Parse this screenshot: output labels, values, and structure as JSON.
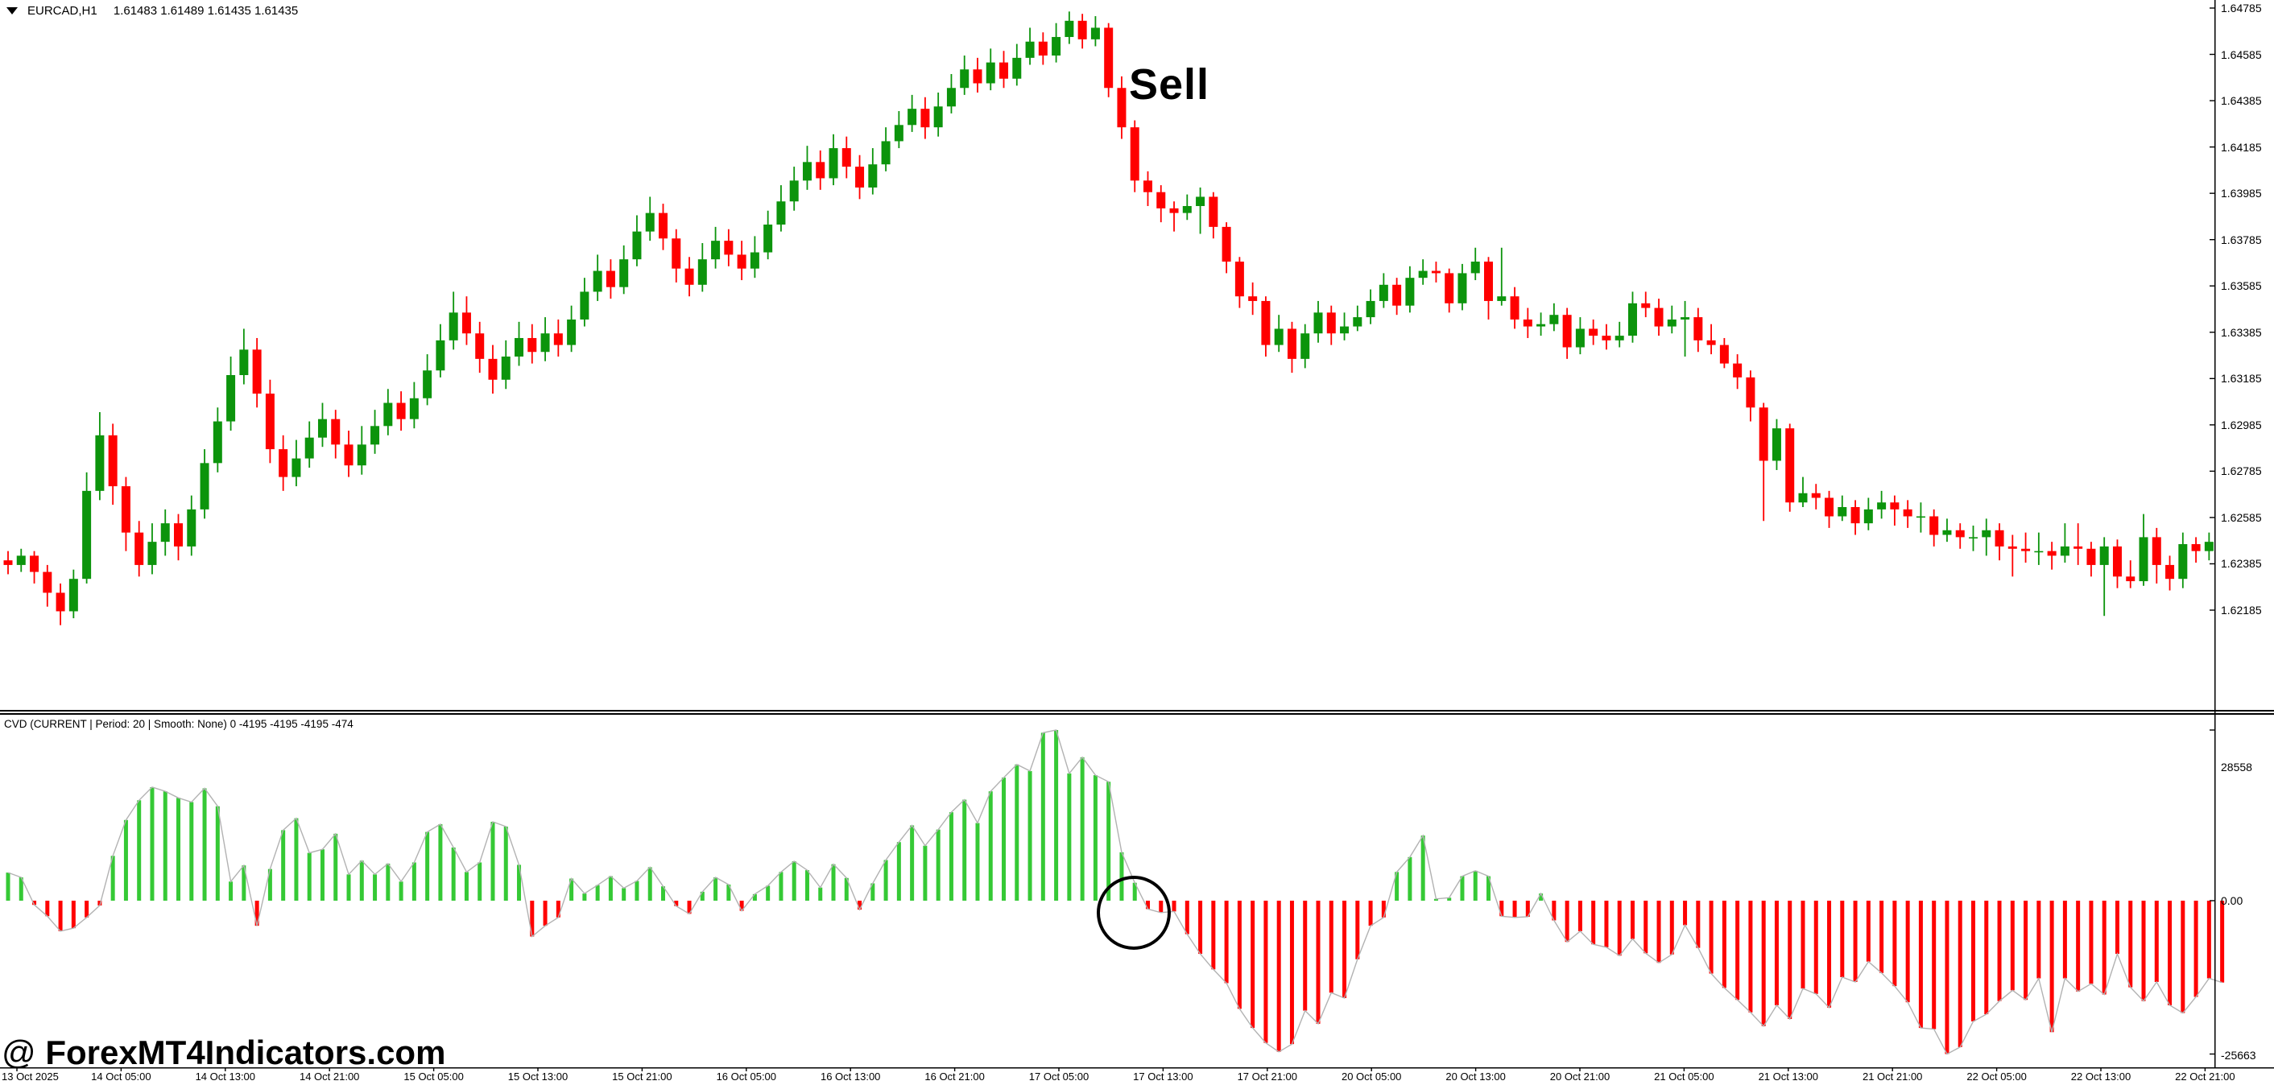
{
  "header": {
    "symbol_marker": "▼",
    "symbol": "EURCAD,H1",
    "ohlc_readout": "1.61483 1.61489 1.61435 1.61435"
  },
  "annotations": {
    "sell_label": "Sell",
    "watermark_at": "@ ",
    "watermark_text": "ForexMT4Indicators.com"
  },
  "indicator_header": "CVD (CURRENT | Period: 20 | Smooth: None) 0 -4195 -4195 -4195 -474",
  "price_axis": {
    "labels": [
      "1.64785",
      "1.64585",
      "1.64385",
      "1.64185",
      "1.63985",
      "1.63785",
      "1.63585",
      "1.63385",
      "1.63185",
      "1.62985",
      "1.62785",
      "1.62585",
      "1.62385",
      "1.62185"
    ]
  },
  "indicator_axis": {
    "max_label": "28558",
    "zero_label": "0.00",
    "min_label": "-25663"
  },
  "time_axis": {
    "labels": [
      "13 Oct 2025",
      "14 Oct 05:00",
      "14 Oct 13:00",
      "14 Oct 21:00",
      "15 Oct 05:00",
      "15 Oct 13:00",
      "15 Oct 21:00",
      "16 Oct 05:00",
      "16 Oct 13:00",
      "16 Oct 21:00",
      "17 Oct 05:00",
      "17 Oct 13:00",
      "17 Oct 21:00",
      "20 Oct 05:00",
      "20 Oct 13:00",
      "20 Oct 21:00",
      "21 Oct 05:00",
      "21 Oct 13:00",
      "21 Oct 21:00",
      "22 Oct 05:00",
      "22 Oct 13:00",
      "22 Oct 21:00"
    ]
  },
  "colors": {
    "background": "#ffffff",
    "candle_up": "#0c940c",
    "candle_down": "#ff0000",
    "cvd_up": "#35c935",
    "cvd_down": "#ff0000",
    "cvd_line": "#b2b2b2",
    "axis": "#000000",
    "text": "#000000",
    "annotation": "#000000"
  },
  "chart_data": [
    {
      "type": "candlestick",
      "title": "EURCAD,H1",
      "ylabel": "price",
      "ylim": [
        1.6208,
        1.6482
      ],
      "grid": false,
      "candles_ohlc": [
        [
          1.624,
          1.6244,
          1.6234,
          1.6238
        ],
        [
          1.6238,
          1.6245,
          1.6235,
          1.6242
        ],
        [
          1.6242,
          1.6244,
          1.623,
          1.6235
        ],
        [
          1.6235,
          1.6238,
          1.622,
          1.6226
        ],
        [
          1.6226,
          1.623,
          1.6212,
          1.6218
        ],
        [
          1.6218,
          1.6236,
          1.6215,
          1.6232
        ],
        [
          1.6232,
          1.6278,
          1.623,
          1.627
        ],
        [
          1.627,
          1.6304,
          1.6266,
          1.6294
        ],
        [
          1.6294,
          1.6299,
          1.6264,
          1.6272
        ],
        [
          1.6272,
          1.6276,
          1.6244,
          1.6252
        ],
        [
          1.6252,
          1.6257,
          1.6233,
          1.6238
        ],
        [
          1.6238,
          1.6256,
          1.6234,
          1.6248
        ],
        [
          1.6248,
          1.6262,
          1.6242,
          1.6256
        ],
        [
          1.6256,
          1.626,
          1.624,
          1.6246
        ],
        [
          1.6246,
          1.6268,
          1.6242,
          1.6262
        ],
        [
          1.6262,
          1.6288,
          1.6258,
          1.6282
        ],
        [
          1.6282,
          1.6306,
          1.6278,
          1.63
        ],
        [
          1.63,
          1.6328,
          1.6296,
          1.632
        ],
        [
          1.632,
          1.634,
          1.6316,
          1.6331
        ],
        [
          1.6331,
          1.6336,
          1.6306,
          1.6312
        ],
        [
          1.6312,
          1.6318,
          1.6282,
          1.6288
        ],
        [
          1.6288,
          1.6294,
          1.627,
          1.6276
        ],
        [
          1.6276,
          1.6292,
          1.6272,
          1.6284
        ],
        [
          1.6284,
          1.63,
          1.628,
          1.6293
        ],
        [
          1.6293,
          1.6308,
          1.6289,
          1.6301
        ],
        [
          1.6301,
          1.6305,
          1.6284,
          1.629
        ],
        [
          1.629,
          1.6296,
          1.6276,
          1.6281
        ],
        [
          1.6281,
          1.6298,
          1.6277,
          1.629
        ],
        [
          1.629,
          1.6305,
          1.6286,
          1.6298
        ],
        [
          1.6298,
          1.6314,
          1.6294,
          1.6308
        ],
        [
          1.6308,
          1.6313,
          1.6296,
          1.6301
        ],
        [
          1.6301,
          1.6317,
          1.6297,
          1.631
        ],
        [
          1.631,
          1.6329,
          1.6307,
          1.6322
        ],
        [
          1.6322,
          1.6342,
          1.6319,
          1.6335
        ],
        [
          1.6335,
          1.6356,
          1.6331,
          1.6347
        ],
        [
          1.6347,
          1.6354,
          1.6333,
          1.6338
        ],
        [
          1.6338,
          1.6343,
          1.6321,
          1.6327
        ],
        [
          1.6327,
          1.6333,
          1.6312,
          1.6318
        ],
        [
          1.6318,
          1.6335,
          1.6314,
          1.6328
        ],
        [
          1.6328,
          1.6343,
          1.6324,
          1.6336
        ],
        [
          1.6336,
          1.6342,
          1.6325,
          1.633
        ],
        [
          1.633,
          1.6345,
          1.6326,
          1.6338
        ],
        [
          1.6338,
          1.6344,
          1.6328,
          1.6333
        ],
        [
          1.6333,
          1.635,
          1.633,
          1.6344
        ],
        [
          1.6344,
          1.6362,
          1.6341,
          1.6356
        ],
        [
          1.6356,
          1.6372,
          1.6352,
          1.6365
        ],
        [
          1.6365,
          1.637,
          1.6353,
          1.6358
        ],
        [
          1.6358,
          1.6376,
          1.6355,
          1.637
        ],
        [
          1.637,
          1.6389,
          1.6367,
          1.6382
        ],
        [
          1.6382,
          1.6397,
          1.6378,
          1.639
        ],
        [
          1.639,
          1.6394,
          1.6374,
          1.6379
        ],
        [
          1.6379,
          1.6383,
          1.636,
          1.6366
        ],
        [
          1.6366,
          1.6371,
          1.6354,
          1.6359
        ],
        [
          1.6359,
          1.6377,
          1.6356,
          1.637
        ],
        [
          1.637,
          1.6384,
          1.6366,
          1.6378
        ],
        [
          1.6378,
          1.6383,
          1.6367,
          1.6372
        ],
        [
          1.6372,
          1.6378,
          1.6361,
          1.6366
        ],
        [
          1.6366,
          1.638,
          1.6362,
          1.6373
        ],
        [
          1.6373,
          1.6391,
          1.637,
          1.6385
        ],
        [
          1.6385,
          1.6402,
          1.6382,
          1.6395
        ],
        [
          1.6395,
          1.641,
          1.6391,
          1.6404
        ],
        [
          1.6404,
          1.6419,
          1.64,
          1.6412
        ],
        [
          1.6412,
          1.6417,
          1.64,
          1.6405
        ],
        [
          1.6405,
          1.6424,
          1.6402,
          1.6418
        ],
        [
          1.6418,
          1.6423,
          1.6405,
          1.641
        ],
        [
          1.641,
          1.6415,
          1.6396,
          1.6401
        ],
        [
          1.6401,
          1.6418,
          1.6398,
          1.6411
        ],
        [
          1.6411,
          1.6427,
          1.6408,
          1.6421
        ],
        [
          1.6421,
          1.6434,
          1.6418,
          1.6428
        ],
        [
          1.6428,
          1.6441,
          1.6425,
          1.6435
        ],
        [
          1.6435,
          1.644,
          1.6422,
          1.6427
        ],
        [
          1.6427,
          1.6442,
          1.6423,
          1.6436
        ],
        [
          1.6436,
          1.645,
          1.6433,
          1.6444
        ],
        [
          1.6444,
          1.6458,
          1.6441,
          1.6452
        ],
        [
          1.6452,
          1.6457,
          1.6442,
          1.6446
        ],
        [
          1.6446,
          1.6461,
          1.6443,
          1.6455
        ],
        [
          1.6455,
          1.646,
          1.6444,
          1.6448
        ],
        [
          1.6448,
          1.6463,
          1.6445,
          1.6457
        ],
        [
          1.6457,
          1.647,
          1.6454,
          1.6464
        ],
        [
          1.6464,
          1.6468,
          1.6454,
          1.6458
        ],
        [
          1.6458,
          1.6472,
          1.6455,
          1.6466
        ],
        [
          1.6466,
          1.6477,
          1.6463,
          1.6473
        ],
        [
          1.6473,
          1.6476,
          1.6461,
          1.6465
        ],
        [
          1.6465,
          1.6475,
          1.6462,
          1.647
        ],
        [
          1.647,
          1.6472,
          1.644,
          1.6444
        ],
        [
          1.6444,
          1.6449,
          1.6422,
          1.6427
        ],
        [
          1.6427,
          1.643,
          1.6399,
          1.6404
        ],
        [
          1.6404,
          1.6408,
          1.6393,
          1.6399
        ],
        [
          1.6399,
          1.6402,
          1.6386,
          1.6392
        ],
        [
          1.6392,
          1.6395,
          1.6382,
          1.639
        ],
        [
          1.639,
          1.6398,
          1.6387,
          1.6393
        ],
        [
          1.6393,
          1.6401,
          1.6381,
          1.6397
        ],
        [
          1.6397,
          1.6399,
          1.6379,
          1.6384
        ],
        [
          1.6384,
          1.6386,
          1.6364,
          1.6369
        ],
        [
          1.6369,
          1.6371,
          1.6349,
          1.6354
        ],
        [
          1.6354,
          1.636,
          1.6346,
          1.6352
        ],
        [
          1.6352,
          1.6354,
          1.6328,
          1.6333
        ],
        [
          1.6333,
          1.6346,
          1.633,
          1.634
        ],
        [
          1.634,
          1.6343,
          1.6321,
          1.6327
        ],
        [
          1.6327,
          1.6342,
          1.6323,
          1.6338
        ],
        [
          1.6338,
          1.6352,
          1.6334,
          1.6347
        ],
        [
          1.6347,
          1.635,
          1.6333,
          1.6338
        ],
        [
          1.6338,
          1.6347,
          1.6335,
          1.6341
        ],
        [
          1.6341,
          1.635,
          1.6339,
          1.6345
        ],
        [
          1.6345,
          1.6357,
          1.6342,
          1.6352
        ],
        [
          1.6352,
          1.6364,
          1.6349,
          1.6359
        ],
        [
          1.6359,
          1.6362,
          1.6346,
          1.635
        ],
        [
          1.635,
          1.6367,
          1.6347,
          1.6362
        ],
        [
          1.6362,
          1.637,
          1.6359,
          1.6365
        ],
        [
          1.6365,
          1.6369,
          1.636,
          1.6364
        ],
        [
          1.6364,
          1.6366,
          1.6347,
          1.6351
        ],
        [
          1.6351,
          1.6368,
          1.6348,
          1.6364
        ],
        [
          1.6364,
          1.6375,
          1.6361,
          1.6369
        ],
        [
          1.6369,
          1.6371,
          1.6344,
          1.6352
        ],
        [
          1.6352,
          1.6375,
          1.635,
          1.6354
        ],
        [
          1.6354,
          1.6358,
          1.634,
          1.6344
        ],
        [
          1.6344,
          1.6349,
          1.6336,
          1.6341
        ],
        [
          1.6341,
          1.6347,
          1.6337,
          1.6342
        ],
        [
          1.6342,
          1.6351,
          1.6339,
          1.6346
        ],
        [
          1.6346,
          1.6349,
          1.6327,
          1.6332
        ],
        [
          1.6332,
          1.6345,
          1.6329,
          1.634
        ],
        [
          1.634,
          1.6344,
          1.6333,
          1.6337
        ],
        [
          1.6337,
          1.6342,
          1.6331,
          1.6335
        ],
        [
          1.6335,
          1.6343,
          1.6332,
          1.6337
        ],
        [
          1.6337,
          1.6356,
          1.6334,
          1.6351
        ],
        [
          1.6351,
          1.6356,
          1.6345,
          1.6349
        ],
        [
          1.6349,
          1.6353,
          1.6337,
          1.6341
        ],
        [
          1.6341,
          1.635,
          1.6338,
          1.6344
        ],
        [
          1.6344,
          1.6352,
          1.6328,
          1.6345
        ],
        [
          1.6345,
          1.6349,
          1.633,
          1.6335
        ],
        [
          1.6335,
          1.6342,
          1.6329,
          1.6333
        ],
        [
          1.6333,
          1.6336,
          1.6323,
          1.6325
        ],
        [
          1.6325,
          1.6329,
          1.6314,
          1.6319
        ],
        [
          1.6319,
          1.6322,
          1.63,
          1.6306
        ],
        [
          1.6306,
          1.6308,
          1.6257,
          1.6283
        ],
        [
          1.6283,
          1.6301,
          1.6279,
          1.6297
        ],
        [
          1.6297,
          1.6299,
          1.6261,
          1.6265
        ],
        [
          1.6265,
          1.6276,
          1.6263,
          1.6269
        ],
        [
          1.6269,
          1.6273,
          1.6262,
          1.6267
        ],
        [
          1.6267,
          1.627,
          1.6254,
          1.6259
        ],
        [
          1.6259,
          1.6268,
          1.6257,
          1.6263
        ],
        [
          1.6263,
          1.6266,
          1.6251,
          1.6256
        ],
        [
          1.6256,
          1.6267,
          1.6253,
          1.6262
        ],
        [
          1.6262,
          1.627,
          1.6258,
          1.6265
        ],
        [
          1.6265,
          1.6268,
          1.6255,
          1.6262
        ],
        [
          1.6262,
          1.6266,
          1.6254,
          1.6259
        ],
        [
          1.6259,
          1.6265,
          1.6252,
          1.6259
        ],
        [
          1.6259,
          1.6262,
          1.6246,
          1.6251
        ],
        [
          1.6251,
          1.6258,
          1.6248,
          1.6253
        ],
        [
          1.6253,
          1.6256,
          1.6245,
          1.625
        ],
        [
          1.625,
          1.6255,
          1.6244,
          1.625
        ],
        [
          1.625,
          1.6258,
          1.6242,
          1.6253
        ],
        [
          1.6253,
          1.6256,
          1.624,
          1.6246
        ],
        [
          1.6246,
          1.6251,
          1.6233,
          1.6245
        ],
        [
          1.6245,
          1.6252,
          1.6239,
          1.6244
        ],
        [
          1.6244,
          1.6252,
          1.6238,
          1.6244
        ],
        [
          1.6244,
          1.6248,
          1.6236,
          1.6242
        ],
        [
          1.6242,
          1.6256,
          1.6239,
          1.6246
        ],
        [
          1.6246,
          1.6256,
          1.6238,
          1.6245
        ],
        [
          1.6245,
          1.6248,
          1.6233,
          1.6238
        ],
        [
          1.6238,
          1.625,
          1.6216,
          1.6246
        ],
        [
          1.6246,
          1.6249,
          1.6228,
          1.6233
        ],
        [
          1.6233,
          1.624,
          1.6228,
          1.6231
        ],
        [
          1.6231,
          1.626,
          1.6229,
          1.625
        ],
        [
          1.625,
          1.6254,
          1.623,
          1.6238
        ],
        [
          1.6238,
          1.6242,
          1.6227,
          1.6232
        ],
        [
          1.6232,
          1.6252,
          1.6228,
          1.6247
        ],
        [
          1.6247,
          1.625,
          1.6239,
          1.6244
        ],
        [
          1.6244,
          1.6252,
          1.624,
          1.6248
        ]
      ]
    },
    {
      "type": "bar",
      "title": "CVD (CURRENT | Period: 20 | Smooth: None)",
      "ylim": [
        -25663,
        28558
      ],
      "zero_line": 0,
      "values": [
        4700,
        3900,
        -700,
        -2600,
        -5100,
        -4600,
        -2800,
        -800,
        7500,
        13500,
        16800,
        19000,
        18300,
        17200,
        16500,
        18800,
        15800,
        3200,
        5900,
        -4200,
        5300,
        11800,
        13800,
        8000,
        8600,
        11200,
        4400,
        6700,
        4400,
        6200,
        3200,
        6400,
        11500,
        12800,
        8900,
        4800,
        6400,
        13200,
        12400,
        6000,
        -6000,
        -4200,
        -2800,
        3700,
        1200,
        2600,
        4100,
        2100,
        3300,
        5600,
        2400,
        -900,
        -2200,
        1500,
        3900,
        2700,
        -1700,
        1100,
        2500,
        4800,
        6600,
        5100,
        2200,
        6100,
        3800,
        -1500,
        2900,
        6800,
        9800,
        12600,
        9200,
        11900,
        14800,
        16900,
        13000,
        18300,
        20600,
        22800,
        21700,
        28100,
        28558,
        21300,
        24000,
        21000,
        19900,
        8100,
        3000,
        -1400,
        -2000,
        -1800,
        -5600,
        -8900,
        -11500,
        -13800,
        -18100,
        -21300,
        -23800,
        -25300,
        -24000,
        -18400,
        -20600,
        -15400,
        -16300,
        -9800,
        -4200,
        -2800,
        4800,
        7300,
        10900,
        300,
        500,
        4100,
        5000,
        4100,
        -2600,
        -2800,
        -2700,
        1200,
        -3300,
        -6900,
        -5100,
        -7300,
        -7800,
        -9200,
        -6400,
        -8800,
        -10400,
        -9000,
        -4100,
        -7900,
        -12200,
        -14600,
        -16600,
        -18700,
        -21000,
        -17500,
        -19800,
        -14700,
        -15600,
        -17900,
        -12800,
        -13600,
        -10200,
        -12100,
        -14300,
        -17000,
        -21300,
        -21500,
        -25663,
        -24500,
        -20200,
        -19000,
        -16800,
        -15000,
        -16600,
        -13000,
        -22000,
        -13000,
        -15200,
        -13900,
        -15700,
        -8900,
        -14500,
        -16800,
        -13600,
        -17500,
        -18800,
        -16100,
        -13000,
        -13700
      ]
    }
  ]
}
